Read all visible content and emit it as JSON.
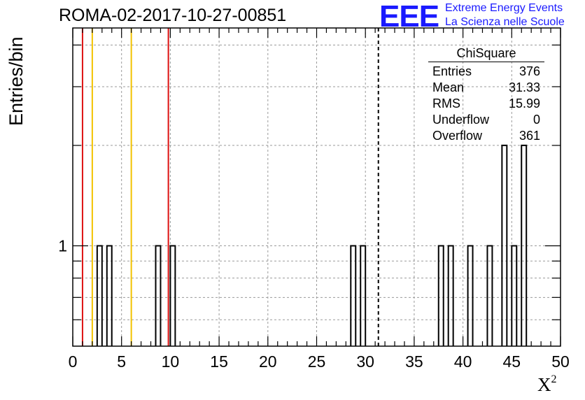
{
  "header": {
    "run_title": "ROMA-02-2017-10-27-00851",
    "logo_mark": "EEE",
    "logo_line1": "Extreme Energy Events",
    "logo_line2": "La Scienza nelle Scuole"
  },
  "stats": {
    "title": "ChiSquare",
    "rows": [
      {
        "label": "Entries",
        "value": "376"
      },
      {
        "label": "Mean",
        "value": "31.33"
      },
      {
        "label": "RMS",
        "value": "15.99"
      },
      {
        "label": "Underflow",
        "value": "0"
      },
      {
        "label": "Overflow",
        "value": "361"
      }
    ]
  },
  "chart_data": {
    "type": "bar",
    "title": "ROMA-02-2017-10-27-00851",
    "xlabel": "X",
    "xlabel_superscript": "2",
    "ylabel": "Entries/bin",
    "xlim": [
      0,
      50
    ],
    "ylim_log": [
      0.5,
      4.5
    ],
    "y_scale": "log",
    "grid": true,
    "x_ticks": [
      "0",
      "5",
      "10",
      "15",
      "20",
      "25",
      "30",
      "35",
      "40",
      "45",
      "50"
    ],
    "y_tick_labels": [
      {
        "value": 1,
        "label": "1"
      }
    ],
    "bin_width": 0.5,
    "bins": [
      {
        "x": 2.5,
        "count": 1
      },
      {
        "x": 3.5,
        "count": 1
      },
      {
        "x": 8.5,
        "count": 1
      },
      {
        "x": 10.0,
        "count": 1
      },
      {
        "x": 28.5,
        "count": 1
      },
      {
        "x": 29.5,
        "count": 1
      },
      {
        "x": 37.5,
        "count": 1
      },
      {
        "x": 38.5,
        "count": 1
      },
      {
        "x": 40.5,
        "count": 1
      },
      {
        "x": 42.5,
        "count": 1
      },
      {
        "x": 44.0,
        "count": 2
      },
      {
        "x": 45.0,
        "count": 1
      },
      {
        "x": 46.0,
        "count": 2
      }
    ],
    "reference_lines": [
      {
        "x": 1.0,
        "color": "#dd1111",
        "style": "solid"
      },
      {
        "x": 2.0,
        "color": "#f2c200",
        "style": "solid"
      },
      {
        "x": 6.0,
        "color": "#f2c200",
        "style": "solid"
      },
      {
        "x": 9.8,
        "color": "#dd1111",
        "style": "solid"
      },
      {
        "x": 31.33,
        "color": "#000000",
        "style": "dashed"
      }
    ]
  }
}
